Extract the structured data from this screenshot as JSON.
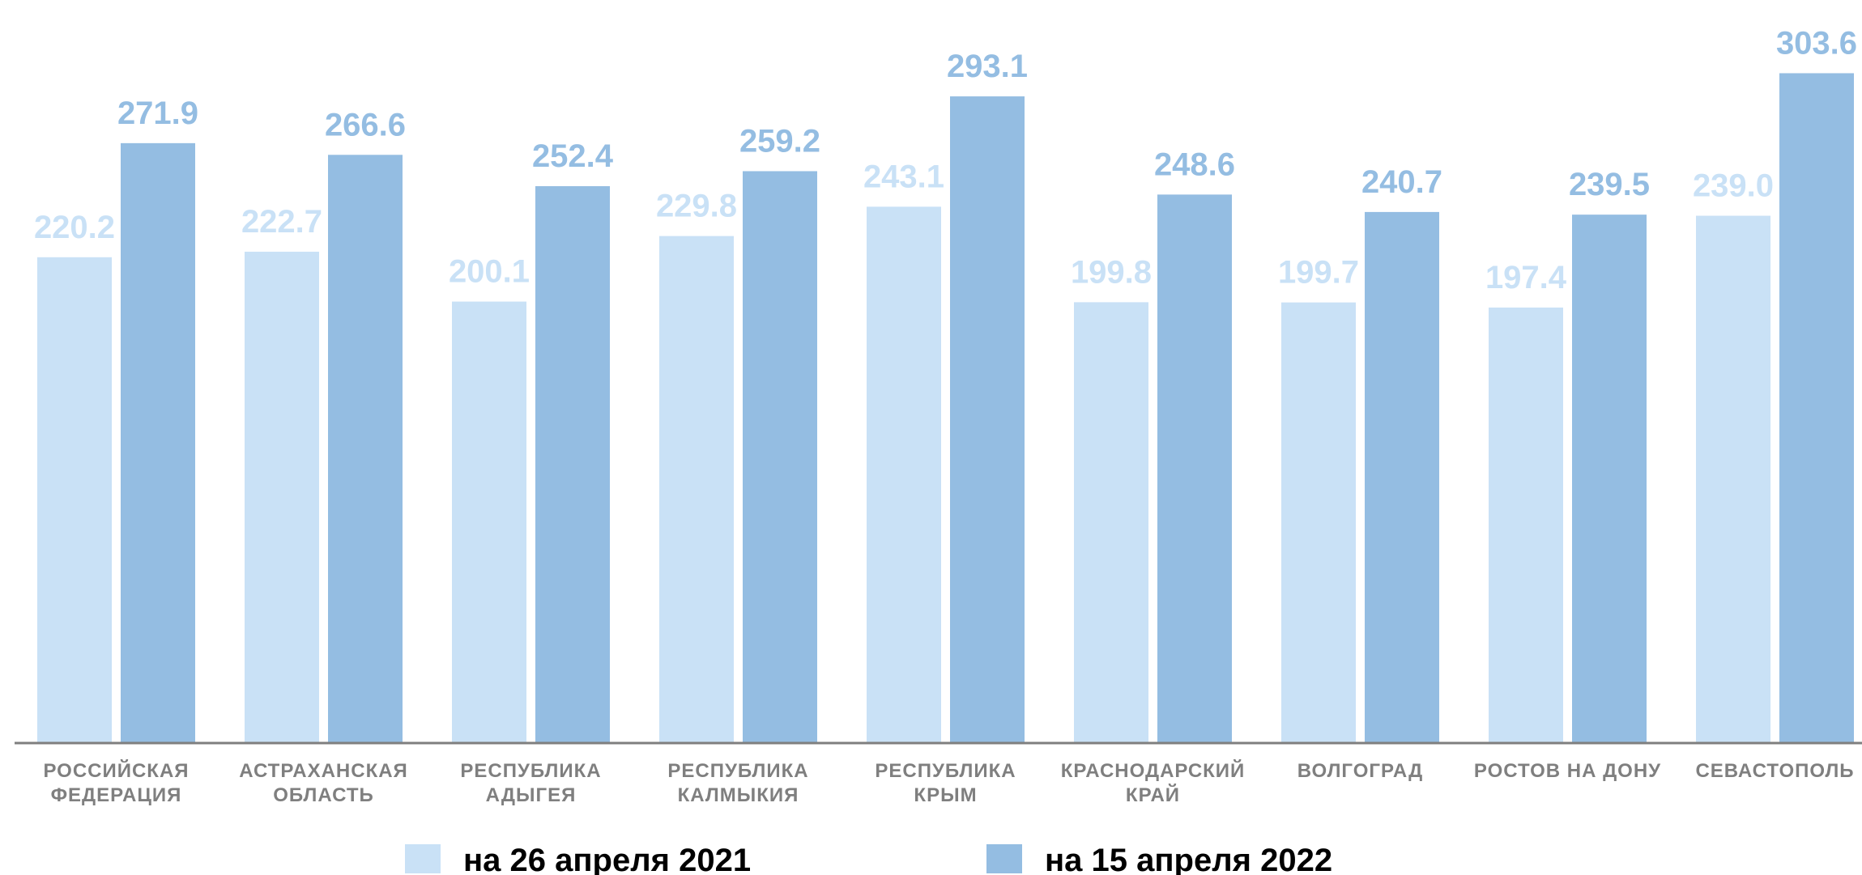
{
  "chart_data": {
    "type": "bar",
    "title": "",
    "xlabel": "",
    "ylabel": "",
    "ylim": [
      0,
      310
    ],
    "grid": false,
    "legend_position": "bottom",
    "categories": [
      [
        "РОССИЙСКАЯ",
        "ФЕДЕРАЦИЯ"
      ],
      [
        "АСТРАХАНСКАЯ",
        "ОБЛАСТЬ"
      ],
      [
        "РЕСПУБЛИКА",
        "АДЫГЕЯ"
      ],
      [
        "РЕСПУБЛИКА",
        "КАЛМЫКИЯ"
      ],
      [
        "РЕСПУБЛИКА",
        "КРЫМ"
      ],
      [
        "КРАСНОДАРСКИЙ",
        "КРАЙ"
      ],
      [
        "ВОЛГОГРАД"
      ],
      [
        "РОСТОВ НА ДОНУ"
      ],
      [
        "СЕВАСТОПОЛЬ"
      ]
    ],
    "series": [
      {
        "name": "на 26 апреля 2021",
        "color": "#c9e1f6",
        "label_color": "#c9e1f6",
        "values": [
          220.2,
          222.7,
          200.1,
          229.8,
          243.1,
          199.8,
          199.7,
          197.4,
          239.0
        ],
        "labels": [
          "220.2",
          "222.7",
          "200.1",
          "229.8",
          "243.1",
          "199.8",
          "199.7",
          "197.4",
          "239.0"
        ]
      },
      {
        "name": "на 15 апреля 2022",
        "color": "#94bde2",
        "label_color": "#94bde2",
        "values": [
          271.9,
          266.6,
          252.4,
          259.2,
          293.1,
          248.6,
          240.7,
          239.5,
          303.6
        ],
        "labels": [
          "271.9",
          "266.6",
          "252.4",
          "259.2",
          "293.1",
          "248.6",
          "240.7",
          "239.5",
          "303.6"
        ]
      }
    ],
    "colors": {
      "axis": "#7f7f7f",
      "category_text": "#7f7f7f",
      "legend_text": "#000000"
    }
  }
}
